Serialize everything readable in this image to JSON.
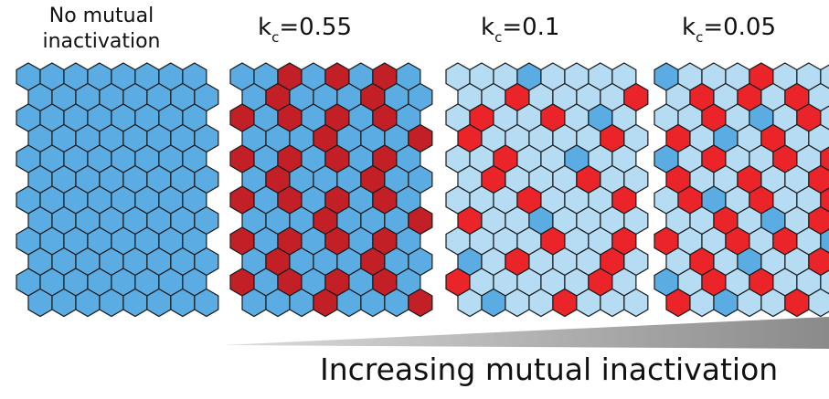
{
  "panels": [
    {
      "label_line1": "No mutual",
      "label_line2": "inactivation"
    },
    {
      "k_base": "k",
      "k_sub": "c",
      "k_value": "=0.55"
    },
    {
      "k_base": "k",
      "k_sub": "c",
      "k_value": "=0.1"
    },
    {
      "k_base": "k",
      "k_sub": "c",
      "k_value": "=0.05"
    }
  ],
  "footer_text": "Increasing mutual inactivation",
  "colors": {
    "blue": "#5aace2",
    "light_blue": "#b6dcf4",
    "dark_red": "#c21f27",
    "red": "#ea2429",
    "stroke": "#1a1a1a",
    "wedge": "#8a8a8a"
  }
}
